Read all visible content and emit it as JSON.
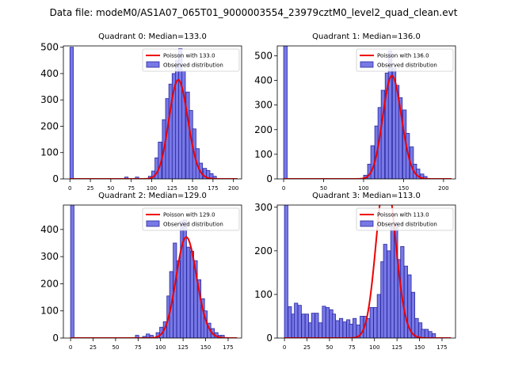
{
  "figure_title": "Data file: modeM0/AS1A07_065T01_9000003554_23979cztM0_level2_quad_clean.evt",
  "colors": {
    "bar_fill": "#7878e6",
    "bar_edge": "#2828a0",
    "poisson": "#ee0000",
    "axis": "#000000"
  },
  "chart_data": [
    {
      "type": "bar",
      "title": "Quadrant 0: Median=133.0",
      "xlim": [
        -8,
        210
      ],
      "ylim": [
        0,
        505
      ],
      "xticks": [
        0,
        25,
        50,
        75,
        100,
        125,
        150,
        175,
        200
      ],
      "yticks": [
        0,
        100,
        200,
        300,
        400,
        500
      ],
      "bin_width": 4.2,
      "legend": {
        "line": "Poisson with 133.0",
        "bars": "Observed distribution"
      },
      "bars": [
        [
          0,
          500
        ],
        [
          67,
          7
        ],
        [
          80,
          7
        ],
        [
          96,
          10
        ],
        [
          100,
          30
        ],
        [
          104,
          80
        ],
        [
          108,
          140
        ],
        [
          113,
          225
        ],
        [
          117,
          305
        ],
        [
          121,
          360
        ],
        [
          125,
          400
        ],
        [
          129,
          450
        ],
        [
          133,
          495
        ],
        [
          137,
          410
        ],
        [
          142,
          330
        ],
        [
          146,
          260
        ],
        [
          150,
          190
        ],
        [
          154,
          115
        ],
        [
          158,
          60
        ],
        [
          163,
          40
        ],
        [
          167,
          32
        ],
        [
          171,
          20
        ],
        [
          175,
          10
        ]
      ],
      "poisson": {
        "mu": 133.0,
        "scale": 2.62
      }
    },
    {
      "type": "bar",
      "title": "Quadrant 1: Median=136.0",
      "xlim": [
        -8,
        215
      ],
      "ylim": [
        0,
        540
      ],
      "xticks": [
        0,
        50,
        100,
        150,
        200
      ],
      "yticks": [
        0,
        100,
        200,
        300,
        400,
        500
      ],
      "bin_width": 4.4,
      "legend": {
        "line": "Poisson with 136.0",
        "bars": "Observed distribution"
      },
      "bars": [
        [
          0,
          540
        ],
        [
          100,
          15
        ],
        [
          105,
          60
        ],
        [
          109,
          135
        ],
        [
          114,
          215
        ],
        [
          118,
          290
        ],
        [
          122,
          360
        ],
        [
          127,
          430
        ],
        [
          131,
          520
        ],
        [
          136,
          450
        ],
        [
          140,
          380
        ],
        [
          144,
          330
        ],
        [
          149,
          280
        ],
        [
          153,
          185
        ],
        [
          158,
          130
        ],
        [
          162,
          60
        ],
        [
          166,
          40
        ],
        [
          171,
          20
        ],
        [
          175,
          10
        ]
      ],
      "poisson": {
        "mu": 136.0,
        "scale": 2.95
      }
    },
    {
      "type": "bar",
      "title": "Quadrant 2: Median=129.0",
      "xlim": [
        -8,
        190
      ],
      "ylim": [
        0,
        490
      ],
      "xticks": [
        0,
        25,
        50,
        75,
        100,
        125,
        150,
        175
      ],
      "yticks": [
        0,
        100,
        200,
        300,
        400
      ],
      "bin_width": 3.8,
      "legend": {
        "line": "Poisson with 129.0",
        "bars": "Observed distribution"
      },
      "bars": [
        [
          0,
          490
        ],
        [
          72,
          10
        ],
        [
          80,
          6
        ],
        [
          84,
          15
        ],
        [
          88,
          10
        ],
        [
          95,
          20
        ],
        [
          99,
          40
        ],
        [
          103,
          60
        ],
        [
          107,
          155
        ],
        [
          110,
          245
        ],
        [
          114,
          350
        ],
        [
          118,
          285
        ],
        [
          122,
          430
        ],
        [
          125,
          435
        ],
        [
          129,
          335
        ],
        [
          133,
          320
        ],
        [
          137,
          285
        ],
        [
          141,
          215
        ],
        [
          145,
          145
        ],
        [
          148,
          100
        ],
        [
          152,
          55
        ],
        [
          156,
          35
        ],
        [
          160,
          20
        ],
        [
          164,
          10
        ],
        [
          167,
          10
        ]
      ],
      "poisson": {
        "mu": 129.0,
        "scale": 2.55
      }
    },
    {
      "type": "bar",
      "title": "Quadrant 3: Median=113.0",
      "xlim": [
        -8,
        190
      ],
      "ylim": [
        0,
        305
      ],
      "xticks": [
        0,
        25,
        50,
        75,
        100,
        125,
        150,
        175
      ],
      "yticks": [
        0,
        100,
        200,
        300
      ],
      "bin_width": 3.8,
      "legend": {
        "line": "Poisson with 113.0",
        "bars": "Observed distribution"
      },
      "bars": [
        [
          0,
          305
        ],
        [
          4,
          72
        ],
        [
          8,
          55
        ],
        [
          11,
          80
        ],
        [
          15,
          75
        ],
        [
          19,
          55
        ],
        [
          23,
          55
        ],
        [
          27,
          35
        ],
        [
          30,
          57
        ],
        [
          34,
          57
        ],
        [
          38,
          35
        ],
        [
          42,
          73
        ],
        [
          46,
          70
        ],
        [
          50,
          65
        ],
        [
          53,
          55
        ],
        [
          57,
          40
        ],
        [
          61,
          45
        ],
        [
          65,
          37
        ],
        [
          69,
          42
        ],
        [
          72,
          32
        ],
        [
          76,
          45
        ],
        [
          80,
          30
        ],
        [
          84,
          50
        ],
        [
          88,
          50
        ],
        [
          91,
          45
        ],
        [
          95,
          70
        ],
        [
          99,
          70
        ],
        [
          103,
          100
        ],
        [
          107,
          175
        ],
        [
          110,
          215
        ],
        [
          114,
          200
        ],
        [
          118,
          255
        ],
        [
          122,
          265
        ],
        [
          126,
          180
        ],
        [
          129,
          210
        ],
        [
          133,
          165
        ],
        [
          137,
          145
        ],
        [
          141,
          105
        ],
        [
          145,
          45
        ],
        [
          149,
          35
        ],
        [
          152,
          20
        ],
        [
          156,
          20
        ],
        [
          160,
          15
        ],
        [
          164,
          10
        ]
      ],
      "poisson": {
        "mu": 113.0,
        "scale": 2.4
      }
    }
  ]
}
